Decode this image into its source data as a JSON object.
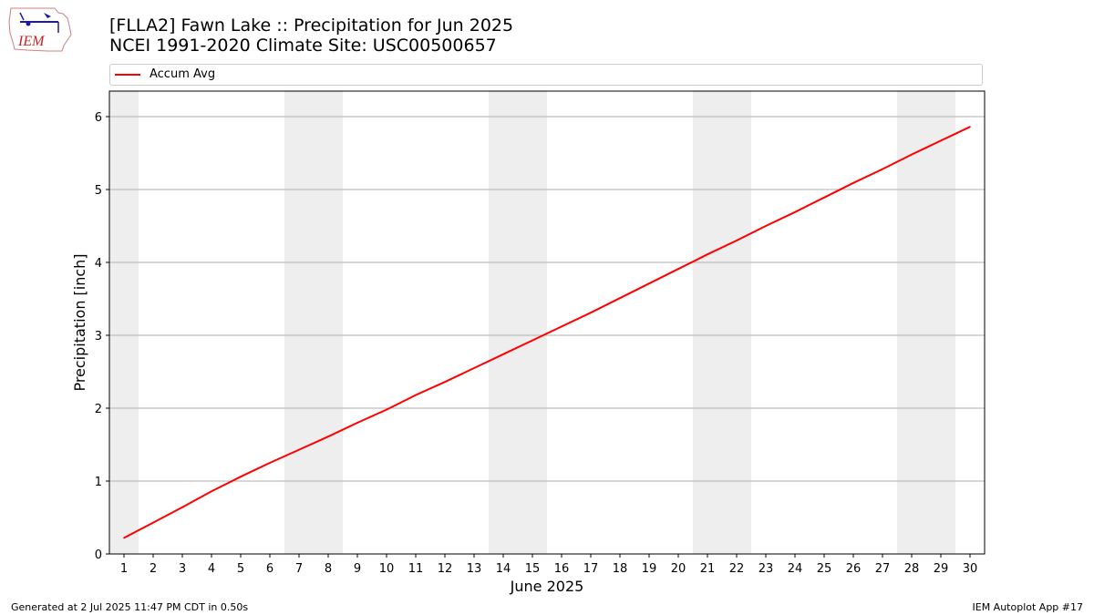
{
  "header": {
    "logo_text": "IEM",
    "title": "[FLLA2] Fawn Lake :: Precipitation for Jun 2025",
    "subtitle": "NCEI 1991-2020 Climate Site: USC00500657"
  },
  "footer": {
    "left": "Generated at 2 Jul 2025 11:47 PM CDT in 0.50s",
    "right": "IEM Autoplot App #17"
  },
  "colors": {
    "series": "#ff0000",
    "weekend_band": "#eeeeee",
    "grid": "#b0b0b0"
  },
  "chart_data": {
    "type": "line",
    "xlabel": "June 2025",
    "ylabel": "Precipitation [inch]",
    "xlim": [
      0.5,
      30.5
    ],
    "ylim": [
      0,
      6.35
    ],
    "x_ticks": [
      1,
      2,
      3,
      4,
      5,
      6,
      7,
      8,
      9,
      10,
      11,
      12,
      13,
      14,
      15,
      16,
      17,
      18,
      19,
      20,
      21,
      22,
      23,
      24,
      25,
      26,
      27,
      28,
      29,
      30
    ],
    "y_ticks": [
      0,
      1,
      2,
      3,
      4,
      5,
      6
    ],
    "grid": "horizontal",
    "legend": "top",
    "shaded_days": [
      1,
      7,
      8,
      14,
      15,
      21,
      22,
      28,
      29
    ],
    "series": [
      {
        "name": "Accum Avg",
        "color": "#ff0000",
        "x": [
          1,
          2,
          3,
          4,
          5,
          6,
          7,
          8,
          9,
          10,
          11,
          12,
          13,
          14,
          15,
          16,
          17,
          18,
          19,
          20,
          21,
          22,
          23,
          24,
          25,
          26,
          27,
          28,
          29,
          30
        ],
        "values": [
          0.22,
          0.43,
          0.64,
          0.86,
          1.06,
          1.25,
          1.43,
          1.61,
          1.8,
          1.98,
          2.18,
          2.36,
          2.55,
          2.74,
          2.93,
          3.12,
          3.31,
          3.51,
          3.71,
          3.91,
          4.11,
          4.3,
          4.5,
          4.69,
          4.89,
          5.09,
          5.28,
          5.48,
          5.67,
          5.86
        ]
      }
    ]
  }
}
